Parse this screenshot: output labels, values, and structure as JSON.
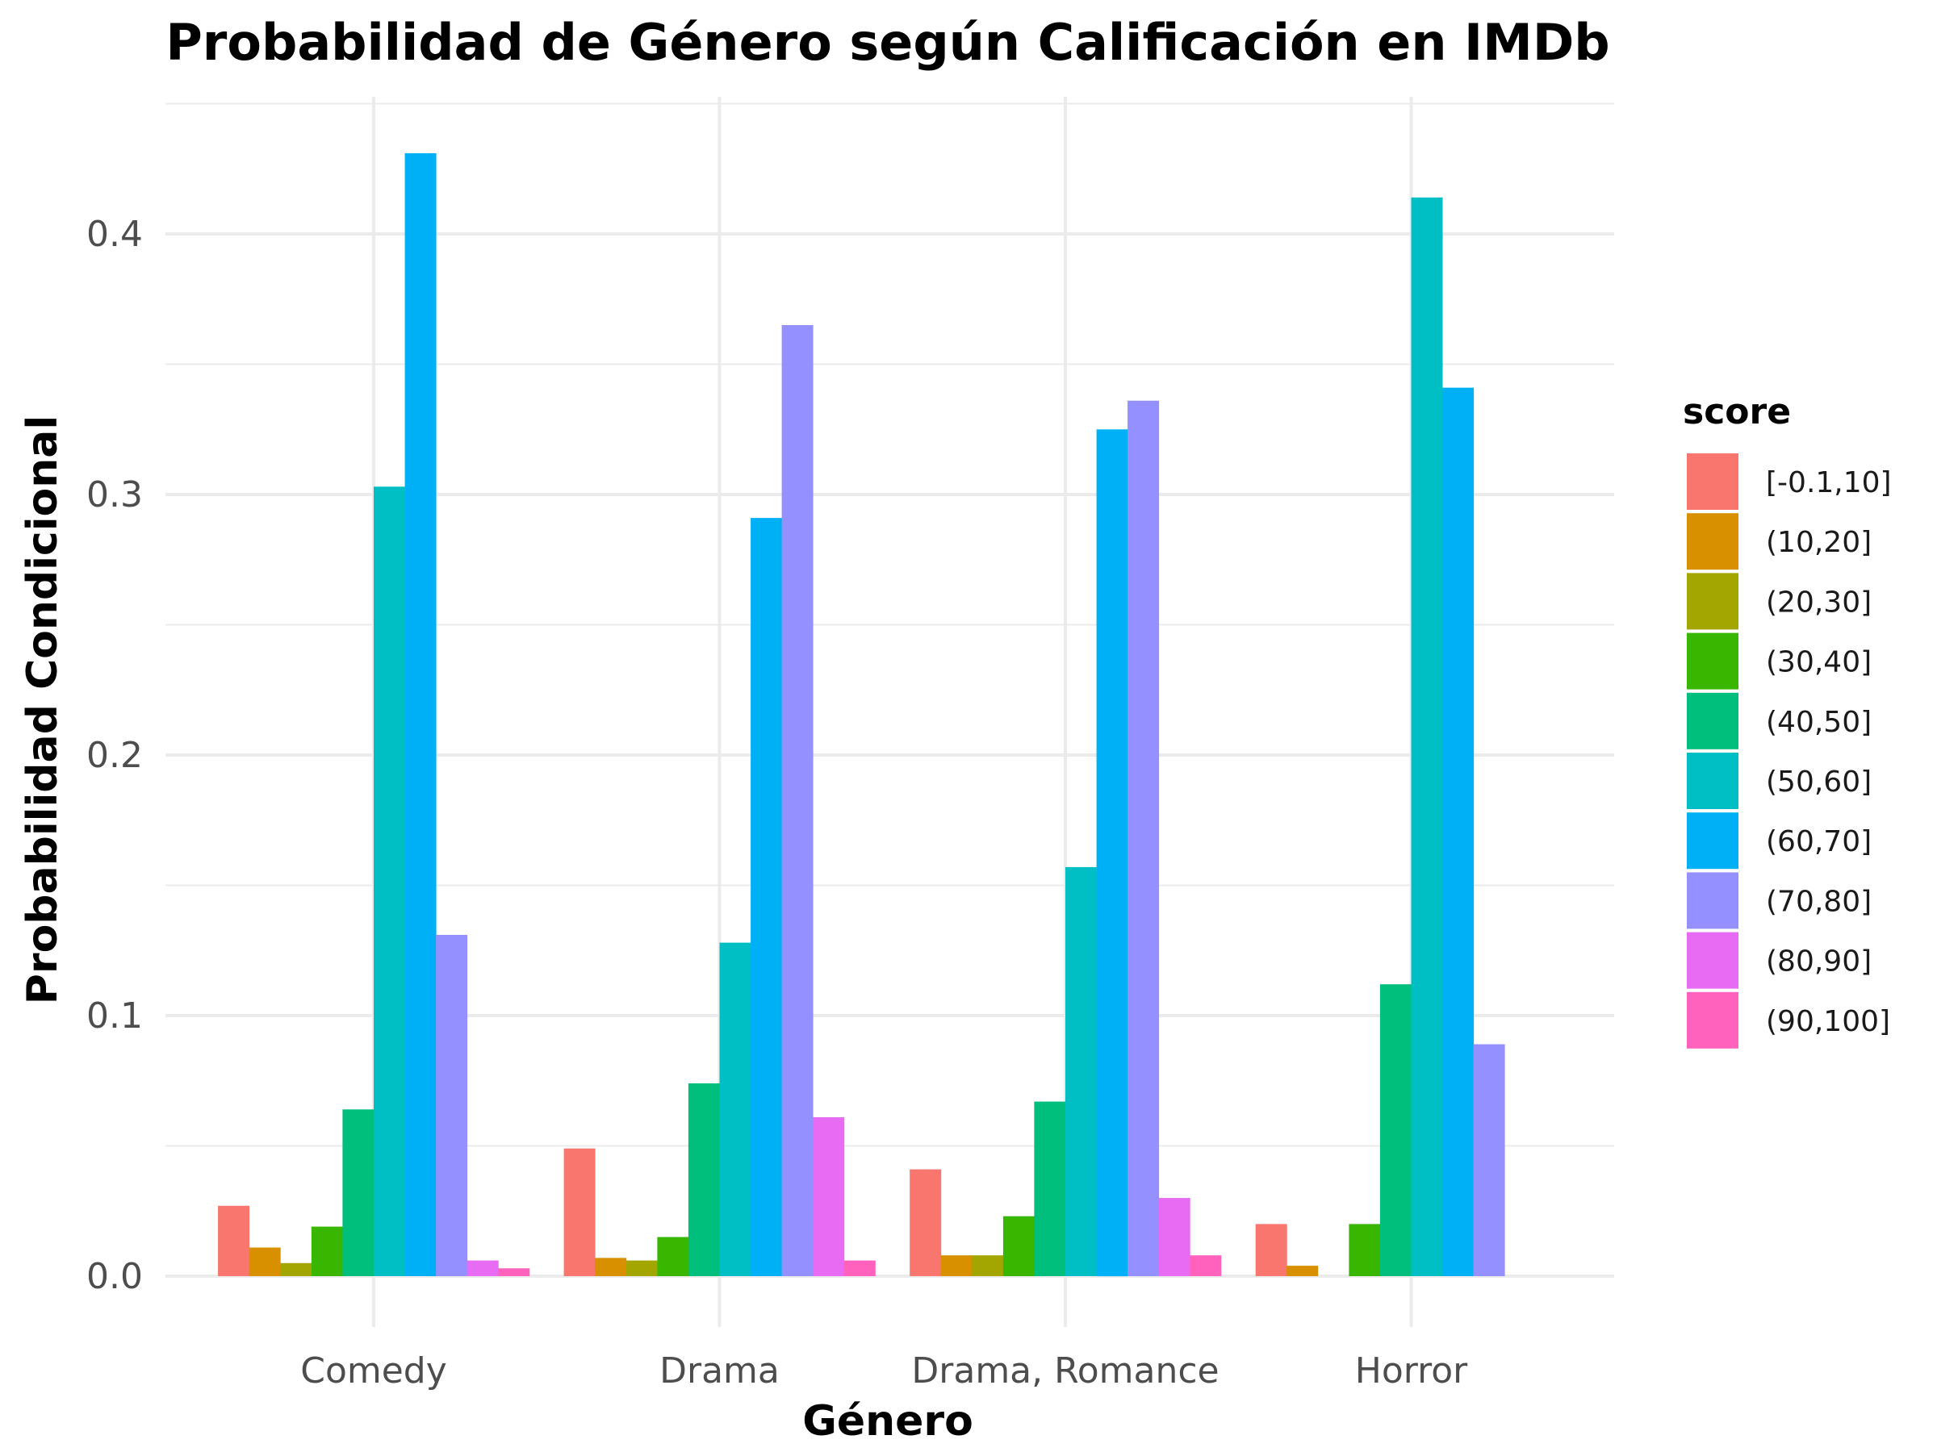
{
  "chart_data": {
    "type": "bar",
    "title": "Probabilidad de Género según Calificación en IMDb",
    "xlabel": "Género",
    "ylabel": "Probabilidad Condicional",
    "ylim": [
      -0.02,
      0.45
    ],
    "yticks": [
      "0.0",
      "0.1",
      "0.2",
      "0.3",
      "0.4"
    ],
    "grid": true,
    "legend": {
      "title": "score",
      "position": "right"
    },
    "categories": [
      "Comedy",
      "Drama",
      "Drama, Romance",
      "Horror"
    ],
    "series": [
      {
        "name": "[-0.1,10]",
        "color": "#F8766D",
        "values": [
          0.027,
          0.049,
          0.041,
          0.02
        ]
      },
      {
        "name": "(10,20]",
        "color": "#D89000",
        "values": [
          0.011,
          0.007,
          0.008,
          0.004
        ]
      },
      {
        "name": "(20,30]",
        "color": "#A3A500",
        "values": [
          0.005,
          0.006,
          0.008,
          null
        ]
      },
      {
        "name": "(30,40]",
        "color": "#39B600",
        "values": [
          0.019,
          0.015,
          0.023,
          0.02
        ]
      },
      {
        "name": "(40,50]",
        "color": "#00BF7D",
        "values": [
          0.064,
          0.074,
          0.067,
          0.112
        ]
      },
      {
        "name": "(50,60]",
        "color": "#00BFC4",
        "values": [
          0.303,
          0.128,
          0.157,
          0.414
        ]
      },
      {
        "name": "(60,70]",
        "color": "#00B0F6",
        "values": [
          0.431,
          0.291,
          0.325,
          0.341
        ]
      },
      {
        "name": "(70,80]",
        "color": "#9590FF",
        "values": [
          0.131,
          0.365,
          0.336,
          0.089
        ]
      },
      {
        "name": "(80,90]",
        "color": "#E76BF3",
        "values": [
          0.006,
          0.061,
          0.03,
          null
        ]
      },
      {
        "name": "(90,100]",
        "color": "#FF62BC",
        "values": [
          0.003,
          0.006,
          0.008,
          null
        ]
      }
    ]
  }
}
